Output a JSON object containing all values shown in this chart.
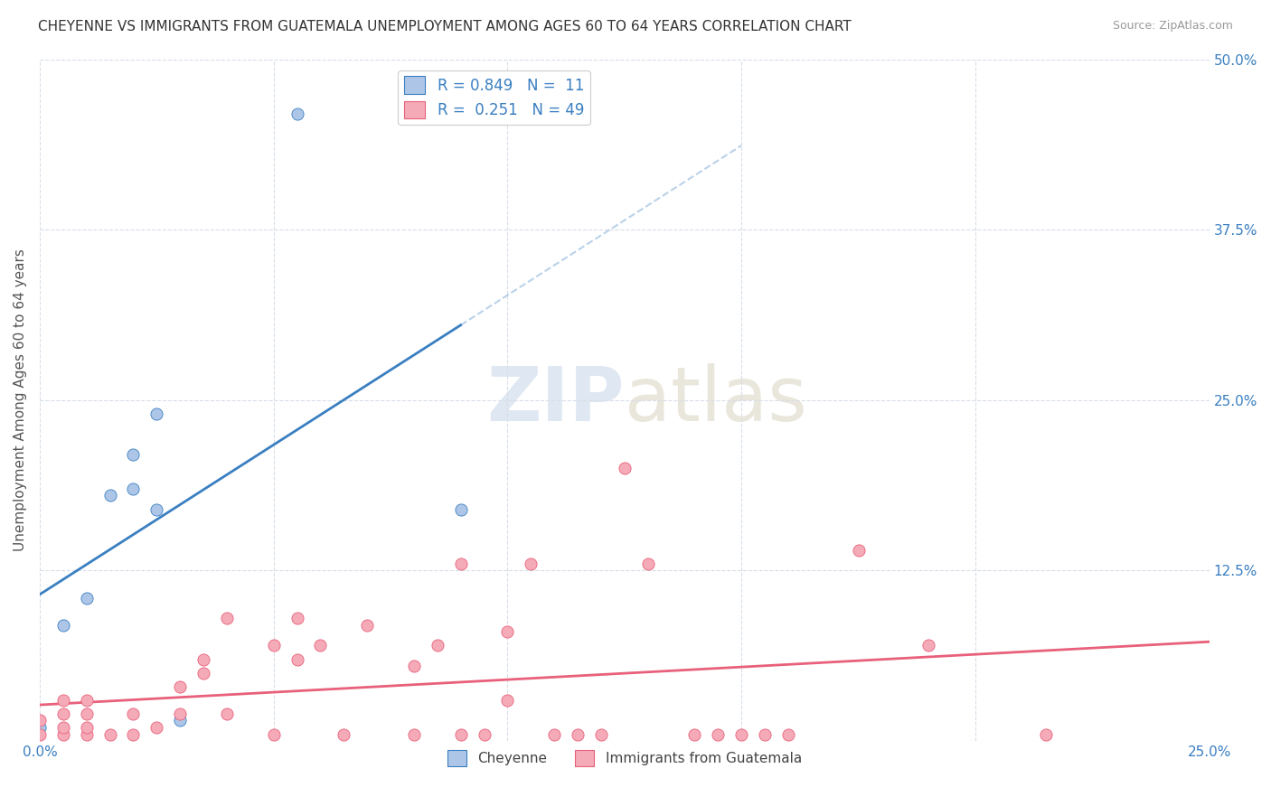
{
  "title": "CHEYENNE VS IMMIGRANTS FROM GUATEMALA UNEMPLOYMENT AMONG AGES 60 TO 64 YEARS CORRELATION CHART",
  "source": "Source: ZipAtlas.com",
  "ylabel": "Unemployment Among Ages 60 to 64 years",
  "xlim": [
    0.0,
    0.25
  ],
  "ylim": [
    0.0,
    0.5
  ],
  "xticks": [
    0.0,
    0.05,
    0.1,
    0.15,
    0.2,
    0.25
  ],
  "yticks": [
    0.0,
    0.125,
    0.25,
    0.375,
    0.5
  ],
  "xticklabels": [
    "0.0%",
    "",
    "",
    "",
    "",
    "25.0%"
  ],
  "yticklabels_right": [
    "",
    "12.5%",
    "25.0%",
    "37.5%",
    "50.0%"
  ],
  "cheyenne_R": 0.849,
  "cheyenne_N": 11,
  "guatemala_R": 0.251,
  "guatemala_N": 49,
  "cheyenne_color": "#adc6e8",
  "guatemala_color": "#f5aab8",
  "cheyenne_line_color": "#3a7fc1",
  "guatemala_line_color": "#e8607a",
  "background_color": "#ffffff",
  "grid_color": "#d8dde8",
  "grid_style": "--",
  "watermark_zip": "ZIP",
  "watermark_atlas": "atlas",
  "cheyenne_x": [
    0.0,
    0.005,
    0.01,
    0.015,
    0.02,
    0.02,
    0.025,
    0.025,
    0.03,
    0.055,
    0.09
  ],
  "cheyenne_y": [
    0.01,
    0.085,
    0.105,
    0.18,
    0.185,
    0.21,
    0.17,
    0.24,
    0.015,
    0.46,
    0.17
  ],
  "guatemala_x": [
    0.0,
    0.0,
    0.005,
    0.005,
    0.005,
    0.005,
    0.01,
    0.01,
    0.01,
    0.01,
    0.015,
    0.02,
    0.02,
    0.025,
    0.03,
    0.03,
    0.035,
    0.035,
    0.04,
    0.04,
    0.05,
    0.05,
    0.055,
    0.055,
    0.06,
    0.065,
    0.07,
    0.08,
    0.08,
    0.085,
    0.09,
    0.09,
    0.095,
    0.1,
    0.1,
    0.105,
    0.11,
    0.115,
    0.12,
    0.125,
    0.13,
    0.14,
    0.145,
    0.15,
    0.155,
    0.16,
    0.175,
    0.19,
    0.215
  ],
  "guatemala_y": [
    0.005,
    0.015,
    0.005,
    0.01,
    0.02,
    0.03,
    0.005,
    0.01,
    0.02,
    0.03,
    0.005,
    0.005,
    0.02,
    0.01,
    0.02,
    0.04,
    0.05,
    0.06,
    0.02,
    0.09,
    0.005,
    0.07,
    0.06,
    0.09,
    0.07,
    0.005,
    0.085,
    0.005,
    0.055,
    0.07,
    0.005,
    0.13,
    0.005,
    0.03,
    0.08,
    0.13,
    0.005,
    0.005,
    0.005,
    0.2,
    0.13,
    0.005,
    0.005,
    0.005,
    0.005,
    0.005,
    0.14,
    0.07,
    0.005
  ]
}
